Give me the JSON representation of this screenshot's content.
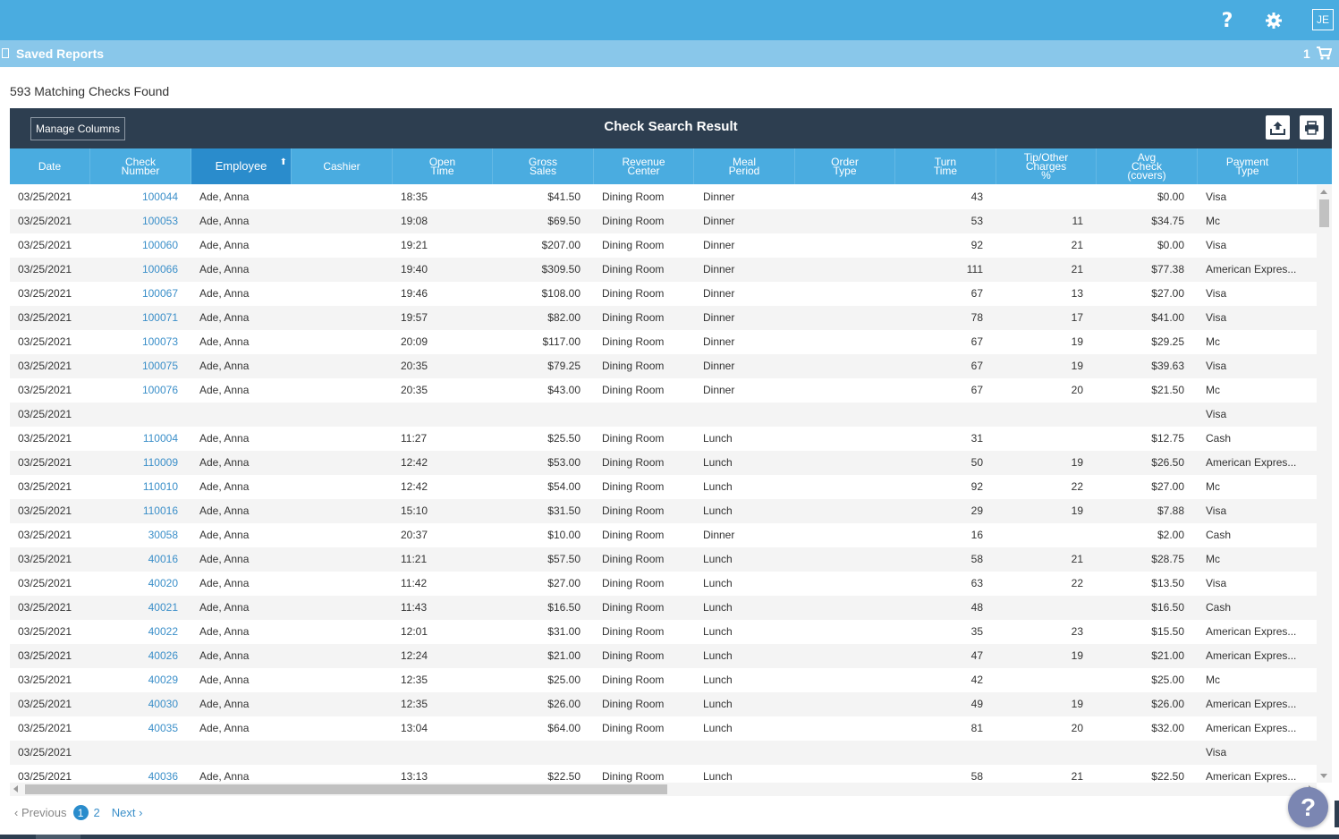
{
  "header": {
    "help_label": "?",
    "avatar_initials": "JE"
  },
  "subbar": {
    "title": "Saved Reports",
    "cart_count": "1"
  },
  "results": {
    "count_text": "593 Matching Checks Found"
  },
  "panel": {
    "manage_columns_label": "Manage Columns",
    "title": "Check Search Result"
  },
  "columns": [
    {
      "key": "date",
      "label": "Date"
    },
    {
      "key": "check",
      "label": "Check\nNumber"
    },
    {
      "key": "employee",
      "label": "Employee"
    },
    {
      "key": "cashier",
      "label": "Cashier"
    },
    {
      "key": "open",
      "label": "Open\nTime"
    },
    {
      "key": "gross",
      "label": "Gross\nSales"
    },
    {
      "key": "revenue",
      "label": "Revenue\nCenter"
    },
    {
      "key": "meal",
      "label": "Meal\nPeriod"
    },
    {
      "key": "order",
      "label": "Order\nType"
    },
    {
      "key": "turn",
      "label": "Turn\nTime"
    },
    {
      "key": "tip",
      "label": "Tip/Other\nCharges\n%"
    },
    {
      "key": "avg",
      "label": "Avg\nCheck\n(covers)"
    },
    {
      "key": "payment",
      "label": "Payment\nType"
    }
  ],
  "rows": [
    {
      "date": "03/25/2021",
      "check": "100044",
      "employee": "Ade, Anna",
      "open": "18:35",
      "gross": "$41.50",
      "revenue": "Dining Room",
      "meal": "Dinner",
      "turn": "43",
      "tip": "",
      "avg": "$0.00",
      "payment": "Visa"
    },
    {
      "date": "03/25/2021",
      "check": "100053",
      "employee": "Ade, Anna",
      "open": "19:08",
      "gross": "$69.50",
      "revenue": "Dining Room",
      "meal": "Dinner",
      "turn": "53",
      "tip": "11",
      "avg": "$34.75",
      "payment": "Mc"
    },
    {
      "date": "03/25/2021",
      "check": "100060",
      "employee": "Ade, Anna",
      "open": "19:21",
      "gross": "$207.00",
      "revenue": "Dining Room",
      "meal": "Dinner",
      "turn": "92",
      "tip": "21",
      "avg": "$0.00",
      "payment": "Visa"
    },
    {
      "date": "03/25/2021",
      "check": "100066",
      "employee": "Ade, Anna",
      "open": "19:40",
      "gross": "$309.50",
      "revenue": "Dining Room",
      "meal": "Dinner",
      "turn": "111",
      "tip": "21",
      "avg": "$77.38",
      "payment": "American Expres..."
    },
    {
      "date": "03/25/2021",
      "check": "100067",
      "employee": "Ade, Anna",
      "open": "19:46",
      "gross": "$108.00",
      "revenue": "Dining Room",
      "meal": "Dinner",
      "turn": "67",
      "tip": "13",
      "avg": "$27.00",
      "payment": "Visa"
    },
    {
      "date": "03/25/2021",
      "check": "100071",
      "employee": "Ade, Anna",
      "open": "19:57",
      "gross": "$82.00",
      "revenue": "Dining Room",
      "meal": "Dinner",
      "turn": "78",
      "tip": "17",
      "avg": "$41.00",
      "payment": "Visa"
    },
    {
      "date": "03/25/2021",
      "check": "100073",
      "employee": "Ade, Anna",
      "open": "20:09",
      "gross": "$117.00",
      "revenue": "Dining Room",
      "meal": "Dinner",
      "turn": "67",
      "tip": "19",
      "avg": "$29.25",
      "payment": "Mc"
    },
    {
      "date": "03/25/2021",
      "check": "100075",
      "employee": "Ade, Anna",
      "open": "20:35",
      "gross": "$79.25",
      "revenue": "Dining Room",
      "meal": "Dinner",
      "turn": "67",
      "tip": "19",
      "avg": "$39.63",
      "payment": "Visa"
    },
    {
      "date": "03/25/2021",
      "check": "100076",
      "employee": "Ade, Anna",
      "open": "20:35",
      "gross": "$43.00",
      "revenue": "Dining Room",
      "meal": "Dinner",
      "turn": "67",
      "tip": "20",
      "avg": "$21.50",
      "payment": "Mc"
    },
    {
      "date": "03/25/2021",
      "check": "",
      "employee": "",
      "open": "",
      "gross": "",
      "revenue": "",
      "meal": "",
      "turn": "",
      "tip": "",
      "avg": "",
      "payment": "Visa"
    },
    {
      "date": "03/25/2021",
      "check": "110004",
      "employee": "Ade, Anna",
      "open": "11:27",
      "gross": "$25.50",
      "revenue": "Dining Room",
      "meal": "Lunch",
      "turn": "31",
      "tip": "",
      "avg": "$12.75",
      "payment": "Cash"
    },
    {
      "date": "03/25/2021",
      "check": "110009",
      "employee": "Ade, Anna",
      "open": "12:42",
      "gross": "$53.00",
      "revenue": "Dining Room",
      "meal": "Lunch",
      "turn": "50",
      "tip": "19",
      "avg": "$26.50",
      "payment": "American Expres..."
    },
    {
      "date": "03/25/2021",
      "check": "110010",
      "employee": "Ade, Anna",
      "open": "12:42",
      "gross": "$54.00",
      "revenue": "Dining Room",
      "meal": "Lunch",
      "turn": "92",
      "tip": "22",
      "avg": "$27.00",
      "payment": "Mc"
    },
    {
      "date": "03/25/2021",
      "check": "110016",
      "employee": "Ade, Anna",
      "open": "15:10",
      "gross": "$31.50",
      "revenue": "Dining Room",
      "meal": "Lunch",
      "turn": "29",
      "tip": "19",
      "avg": "$7.88",
      "payment": "Visa"
    },
    {
      "date": "03/25/2021",
      "check": "30058",
      "employee": "Ade, Anna",
      "open": "20:37",
      "gross": "$10.00",
      "revenue": "Dining Room",
      "meal": "Dinner",
      "turn": "16",
      "tip": "",
      "avg": "$2.00",
      "payment": "Cash"
    },
    {
      "date": "03/25/2021",
      "check": "40016",
      "employee": "Ade, Anna",
      "open": "11:21",
      "gross": "$57.50",
      "revenue": "Dining Room",
      "meal": "Lunch",
      "turn": "58",
      "tip": "21",
      "avg": "$28.75",
      "payment": "Mc"
    },
    {
      "date": "03/25/2021",
      "check": "40020",
      "employee": "Ade, Anna",
      "open": "11:42",
      "gross": "$27.00",
      "revenue": "Dining Room",
      "meal": "Lunch",
      "turn": "63",
      "tip": "22",
      "avg": "$13.50",
      "payment": "Visa"
    },
    {
      "date": "03/25/2021",
      "check": "40021",
      "employee": "Ade, Anna",
      "open": "11:43",
      "gross": "$16.50",
      "revenue": "Dining Room",
      "meal": "Lunch",
      "turn": "48",
      "tip": "",
      "avg": "$16.50",
      "payment": "Cash"
    },
    {
      "date": "03/25/2021",
      "check": "40022",
      "employee": "Ade, Anna",
      "open": "12:01",
      "gross": "$31.00",
      "revenue": "Dining Room",
      "meal": "Lunch",
      "turn": "35",
      "tip": "23",
      "avg": "$15.50",
      "payment": "American Expres..."
    },
    {
      "date": "03/25/2021",
      "check": "40026",
      "employee": "Ade, Anna",
      "open": "12:24",
      "gross": "$21.00",
      "revenue": "Dining Room",
      "meal": "Lunch",
      "turn": "47",
      "tip": "19",
      "avg": "$21.00",
      "payment": "American Expres..."
    },
    {
      "date": "03/25/2021",
      "check": "40029",
      "employee": "Ade, Anna",
      "open": "12:35",
      "gross": "$25.00",
      "revenue": "Dining Room",
      "meal": "Lunch",
      "turn": "42",
      "tip": "",
      "avg": "$25.00",
      "payment": "Mc"
    },
    {
      "date": "03/25/2021",
      "check": "40030",
      "employee": "Ade, Anna",
      "open": "12:35",
      "gross": "$26.00",
      "revenue": "Dining Room",
      "meal": "Lunch",
      "turn": "49",
      "tip": "19",
      "avg": "$26.00",
      "payment": "American Expres..."
    },
    {
      "date": "03/25/2021",
      "check": "40035",
      "employee": "Ade, Anna",
      "open": "13:04",
      "gross": "$64.00",
      "revenue": "Dining Room",
      "meal": "Lunch",
      "turn": "81",
      "tip": "20",
      "avg": "$32.00",
      "payment": "American Expres..."
    },
    {
      "date": "03/25/2021",
      "check": "",
      "employee": "",
      "open": "",
      "gross": "",
      "revenue": "",
      "meal": "",
      "turn": "",
      "tip": "",
      "avg": "",
      "payment": "Visa"
    },
    {
      "date": "03/25/2021",
      "check": "40036",
      "employee": "Ade, Anna",
      "open": "13:13",
      "gross": "$22.50",
      "revenue": "Dining Room",
      "meal": "Lunch",
      "turn": "58",
      "tip": "21",
      "avg": "$22.50",
      "payment": "American Expres..."
    }
  ],
  "pager": {
    "prev_label": "‹ Previous",
    "pages": [
      "1",
      "2"
    ],
    "current_page": "1",
    "next_label": "Next ›"
  },
  "help_fab_label": "?"
}
